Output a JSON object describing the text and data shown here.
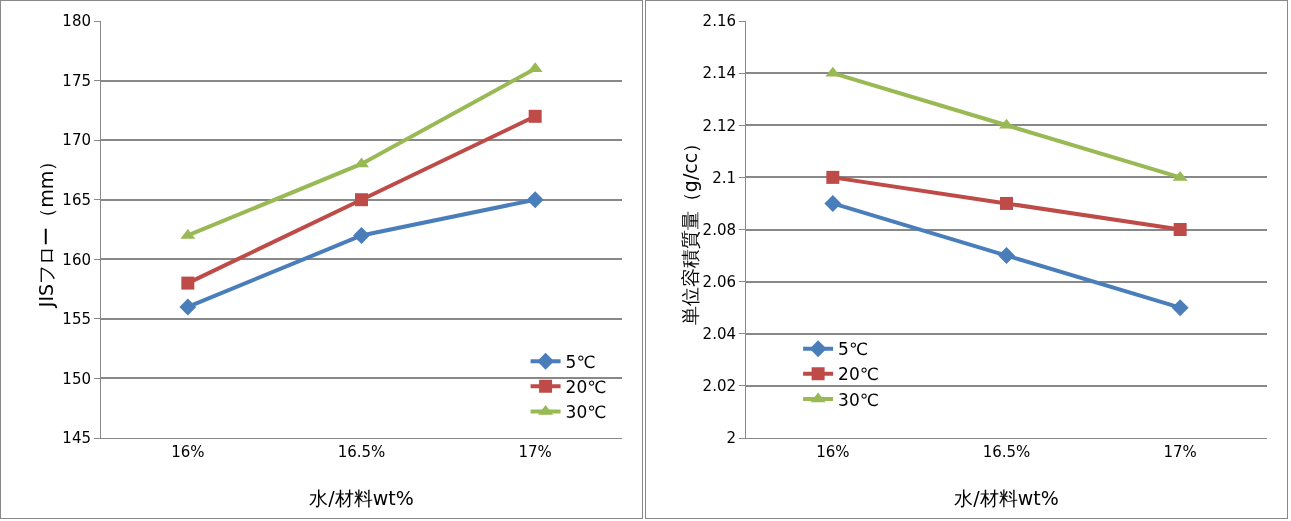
{
  "chart_data": [
    {
      "type": "line",
      "xlabel": "水/材料wt%",
      "ylabel": "JISフロー（mm）",
      "categories": [
        "16%",
        "16.5%",
        "17%"
      ],
      "ylim": [
        145,
        180
      ],
      "yticks": [
        145,
        150,
        155,
        160,
        165,
        170,
        175,
        180
      ],
      "grid": "y",
      "legend": "bottom right",
      "line_style": "solid",
      "series": [
        {
          "name": "5℃",
          "color": "#4a7ebb",
          "marker": "diamond",
          "values": [
            156,
            162,
            165
          ]
        },
        {
          "name": "20℃",
          "color": "#be4b48",
          "marker": "square",
          "values": [
            158,
            165,
            172
          ]
        },
        {
          "name": "30℃",
          "color": "#98b954",
          "marker": "triangle",
          "values": [
            162,
            168,
            176
          ]
        }
      ]
    },
    {
      "type": "line",
      "xlabel": "水/材料wt%",
      "ylabel": "単位容積質量（g/cc）",
      "categories": [
        "16%",
        "16.5%",
        "17%"
      ],
      "ylim": [
        2,
        2.16
      ],
      "yticks": [
        2,
        2.02,
        2.04,
        2.06,
        2.08,
        2.1,
        2.12,
        2.14,
        2.16
      ],
      "grid": "y",
      "legend": "bottom left",
      "line_style": "solid",
      "series": [
        {
          "name": "5℃",
          "color": "#4a7ebb",
          "marker": "diamond",
          "values": [
            2.09,
            2.07,
            2.05
          ]
        },
        {
          "name": "20℃",
          "color": "#be4b48",
          "marker": "square",
          "values": [
            2.1,
            2.09,
            2.08
          ]
        },
        {
          "name": "30℃",
          "color": "#98b954",
          "marker": "triangle",
          "values": [
            2.14,
            2.12,
            2.1
          ]
        }
      ]
    }
  ]
}
